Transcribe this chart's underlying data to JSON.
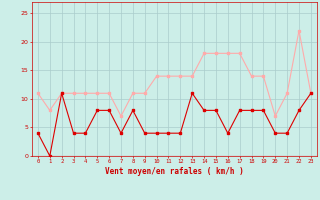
{
  "x": [
    0,
    1,
    2,
    3,
    4,
    5,
    6,
    7,
    8,
    9,
    10,
    11,
    12,
    13,
    14,
    15,
    16,
    17,
    18,
    19,
    20,
    21,
    22,
    23
  ],
  "y_mean": [
    4,
    0,
    11,
    4,
    4,
    8,
    8,
    4,
    8,
    4,
    4,
    4,
    4,
    11,
    8,
    8,
    4,
    8,
    8,
    8,
    4,
    4,
    8,
    11
  ],
  "y_gust": [
    11,
    8,
    11,
    11,
    11,
    11,
    11,
    7,
    11,
    11,
    14,
    14,
    14,
    14,
    18,
    18,
    18,
    18,
    14,
    14,
    7,
    11,
    22,
    11
  ],
  "color_mean": "#dd0000",
  "color_gust": "#ffaaaa",
  "bg_color": "#cceee8",
  "grid_color": "#aacccc",
  "xlabel": "Vent moyen/en rafales ( km/h )",
  "xlabel_color": "#cc0000",
  "tick_color": "#cc0000",
  "ylim_min": 0,
  "ylim_max": 27,
  "yticks": [
    0,
    5,
    10,
    15,
    20,
    25
  ],
  "marker": "s",
  "markersize": 2.0,
  "linewidth": 0.8
}
